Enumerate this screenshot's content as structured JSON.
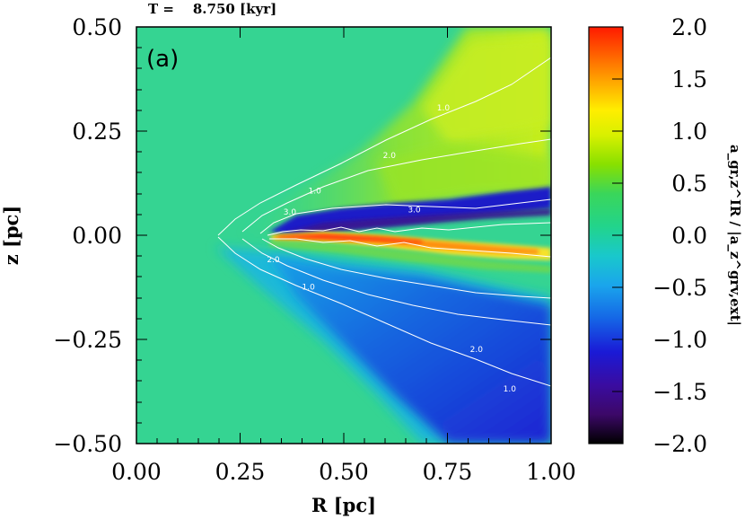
{
  "time_label": "T =    8.750 [kyr]",
  "panel_label": "(a)",
  "chart_data": {
    "type": "heatmap",
    "title": "T = 8.750 [kyr]",
    "xlabel": "R [pc]",
    "ylabel": "z [pc]",
    "xlim": [
      0.0,
      1.0
    ],
    "ylim": [
      -0.5,
      0.5
    ],
    "x_ticks": [
      "0.00",
      "0.25",
      "0.50",
      "0.75",
      "1.00"
    ],
    "y_ticks": [
      "0.50",
      "0.25",
      "0.00",
      "−0.25",
      "−0.50"
    ],
    "colorbar": {
      "label": "a_gr,z^IR / |a_z^grv,ext|",
      "range": [
        -2.0,
        2.0
      ],
      "ticks": [
        "2.0",
        "1.5",
        "1.0",
        "0.5",
        "0.0",
        "−0.5",
        "−1.0",
        "−1.5",
        "−2.0"
      ]
    },
    "background_value": 0.3,
    "contour_levels": [
      "1.0",
      "2.0",
      "3.0"
    ],
    "contour_labels": [
      {
        "text": "1.0",
        "R": 0.74,
        "z": 0.3
      },
      {
        "text": "2.0",
        "R": 0.61,
        "z": 0.185
      },
      {
        "text": "1.0",
        "R": 0.43,
        "z": 0.1
      },
      {
        "text": "3.0",
        "R": 0.37,
        "z": 0.05
      },
      {
        "text": "3.0",
        "R": 0.67,
        "z": 0.055
      },
      {
        "text": "2.0",
        "R": 0.33,
        "z": -0.065
      },
      {
        "text": "1.0",
        "R": 0.415,
        "z": -0.13
      },
      {
        "text": "2.0",
        "R": 0.82,
        "z": -0.28
      },
      {
        "text": "1.0",
        "R": 0.9,
        "z": -0.375
      }
    ]
  }
}
